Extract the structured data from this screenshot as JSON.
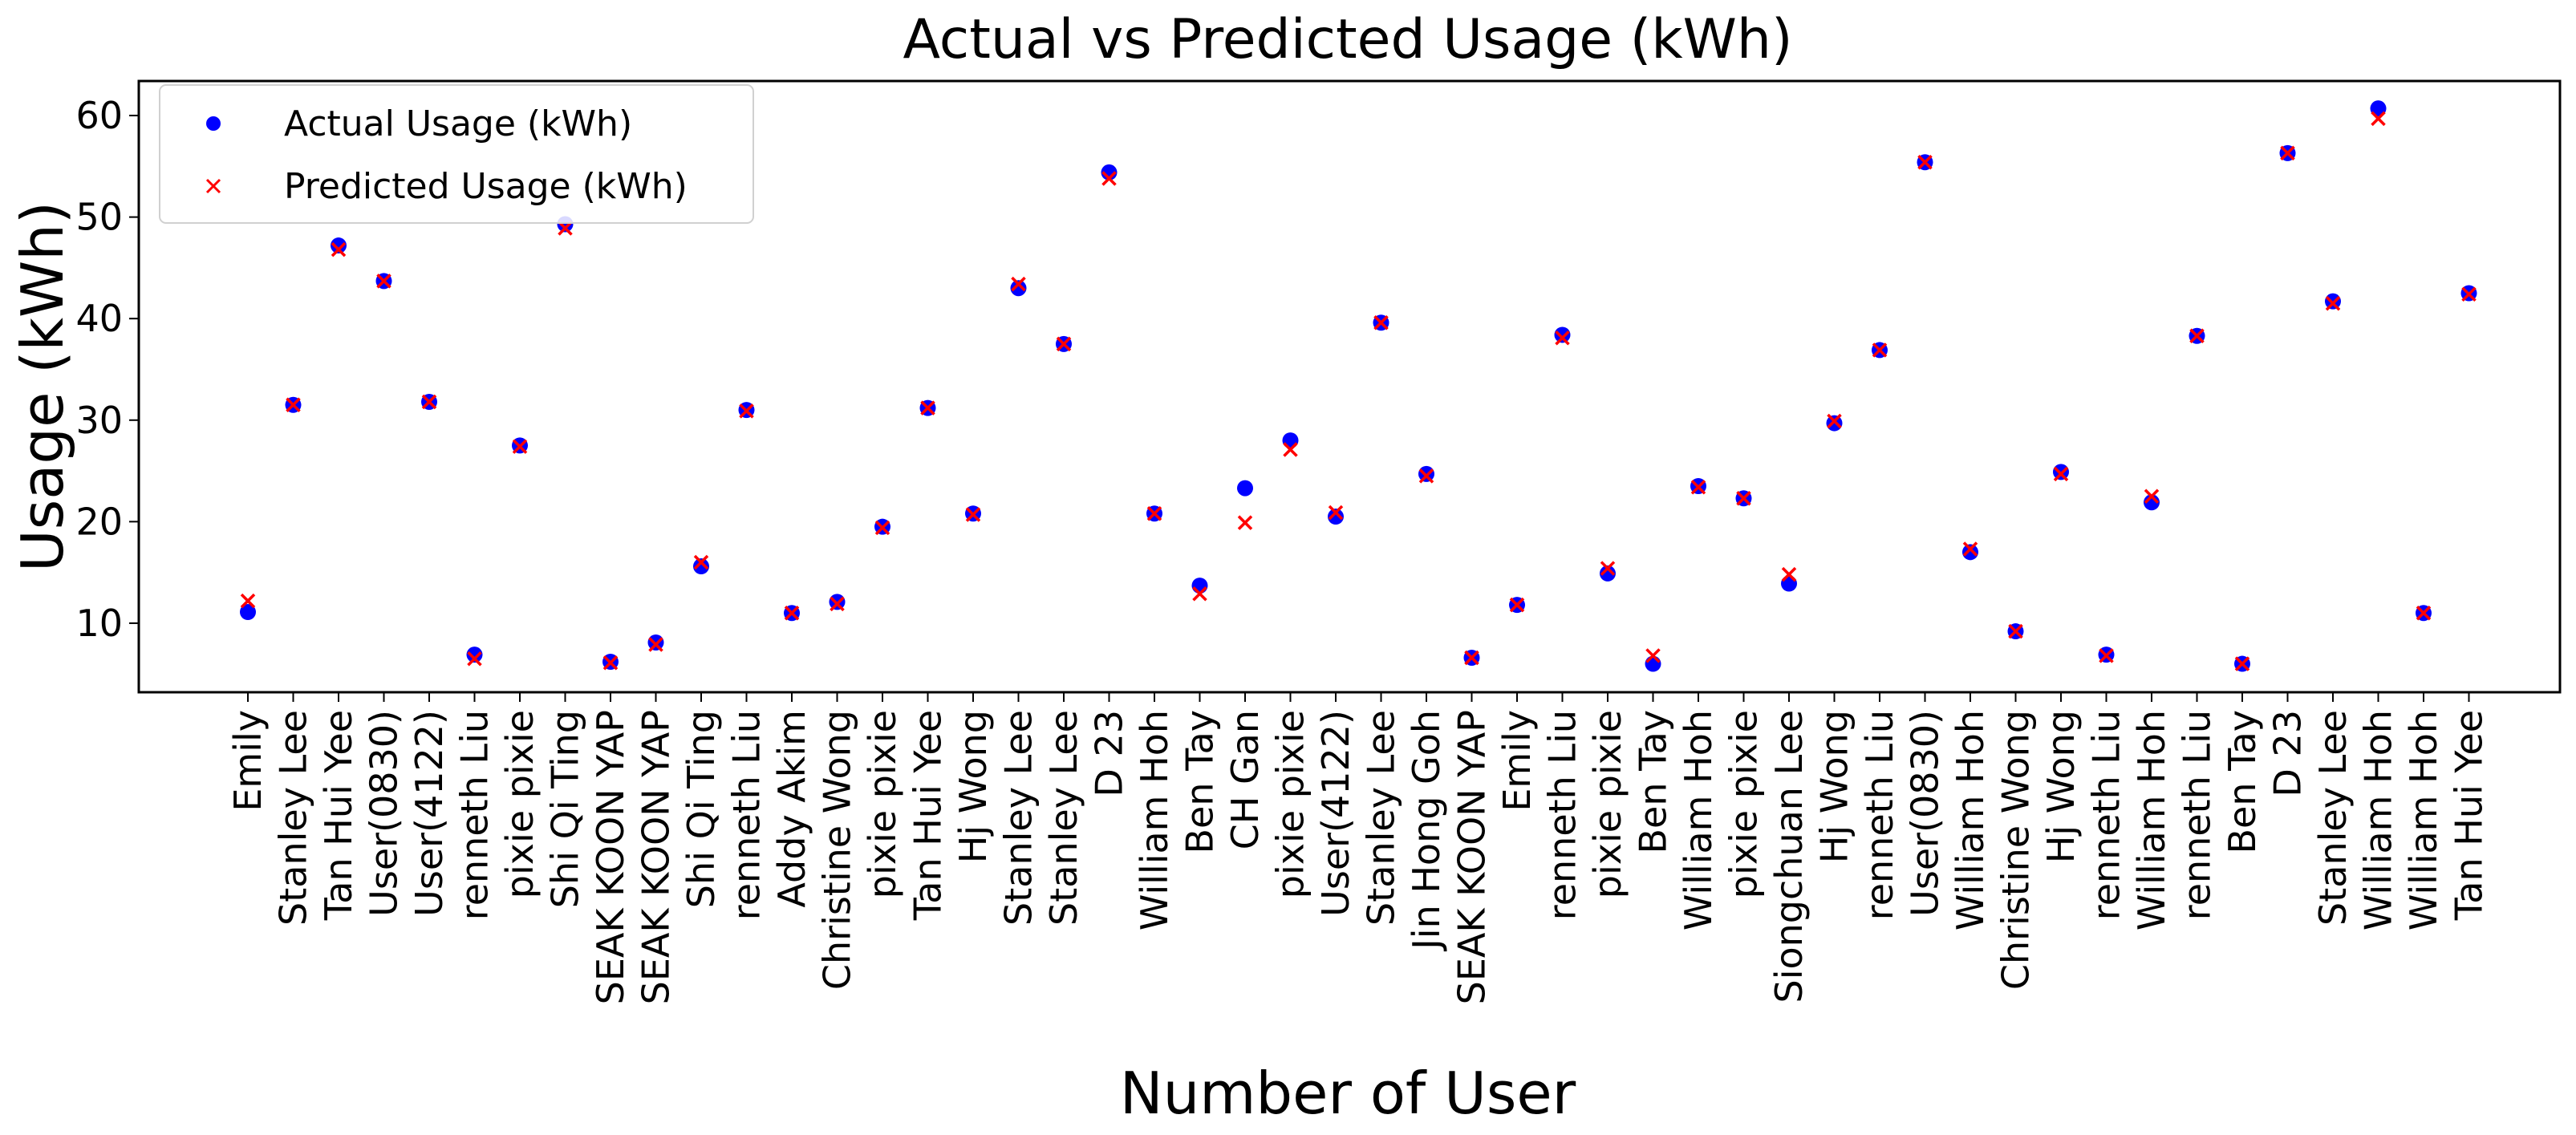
{
  "chart_data": {
    "type": "scatter",
    "title": "Actual vs Predicted Usage (kWh)",
    "xlabel": "Number of User",
    "ylabel": "Usage (kWh)",
    "ylim": [
      3.2,
      63.4
    ],
    "yticks": [
      10,
      20,
      30,
      40,
      50,
      60
    ],
    "grid": false,
    "legend_position": "top-left",
    "categories": [
      "Emily",
      "Stanley Lee",
      "Tan Hui Yee",
      "User(0830)",
      "User(4122)",
      "renneth Liu",
      "pixie pixie",
      "Shi Qi Ting",
      "SEAK KOON YAP",
      "SEAK KOON YAP",
      "Shi Qi Ting",
      "renneth Liu",
      "Addy Akim",
      "Christine Wong",
      "pixie pixie",
      "Tan Hui Yee",
      "Hj Wong",
      "Stanley Lee",
      "Stanley Lee",
      "D 23",
      "William Hoh",
      "Ben Tay",
      "CH Gan",
      "pixie pixie",
      "User(4122)",
      "Stanley Lee",
      "Jin Hong Goh",
      "SEAK KOON YAP",
      "Emily",
      "renneth Liu",
      "pixie pixie",
      "Ben Tay",
      "William Hoh",
      "pixie pixie",
      "Siongchuan Lee",
      "Hj Wong",
      "renneth Liu",
      "User(0830)",
      "William Hoh",
      "Christine Wong",
      "Hj Wong",
      "renneth Liu",
      "William Hoh",
      "renneth Liu",
      "Ben Tay",
      "D 23",
      "Stanley Lee",
      "William Hoh",
      "William Hoh",
      "Tan Hui Yee"
    ],
    "series": [
      {
        "name": "Actual Usage (kWh)",
        "marker": "circle",
        "color": "#0000ff",
        "values": [
          11.1,
          31.5,
          47.2,
          43.7,
          31.8,
          6.9,
          27.5,
          49.3,
          6.2,
          8.1,
          15.6,
          31.0,
          11.0,
          12.1,
          19.5,
          31.2,
          20.8,
          43.0,
          37.5,
          54.4,
          20.8,
          13.7,
          23.3,
          28.0,
          20.5,
          39.6,
          24.7,
          6.6,
          11.8,
          38.4,
          14.9,
          6.0,
          23.5,
          22.3,
          13.9,
          29.7,
          36.9,
          55.4,
          17.0,
          9.2,
          24.9,
          6.9,
          21.9,
          38.3,
          6.0,
          56.3,
          41.7,
          60.7,
          11.0,
          42.5
        ]
      },
      {
        "name": "Predicted Usage (kWh)",
        "marker": "x",
        "color": "#ff0000",
        "values": [
          12.2,
          31.5,
          46.8,
          43.7,
          31.8,
          6.5,
          27.4,
          48.9,
          6.1,
          7.9,
          16.0,
          30.9,
          11.0,
          11.9,
          19.4,
          31.2,
          20.7,
          43.4,
          37.5,
          53.8,
          20.8,
          12.9,
          19.9,
          27.1,
          20.9,
          39.6,
          24.5,
          6.6,
          11.8,
          38.1,
          15.4,
          6.8,
          23.4,
          22.3,
          14.8,
          29.9,
          36.9,
          55.4,
          17.3,
          9.2,
          24.7,
          6.8,
          22.5,
          38.3,
          6.0,
          56.3,
          41.5,
          59.7,
          11.0,
          42.4
        ]
      }
    ]
  }
}
